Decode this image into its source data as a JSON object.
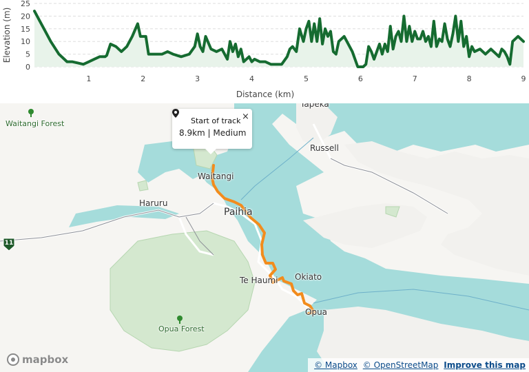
{
  "chart_data": {
    "type": "area",
    "xlabel": "Distance (km)",
    "ylabel": "Elevation (m)",
    "xlim": [
      0,
      9
    ],
    "ylim": [
      0,
      25
    ],
    "x_ticks": [
      "1",
      "2",
      "3",
      "4",
      "5",
      "6",
      "7",
      "8",
      "9"
    ],
    "y_ticks": [
      "0",
      "5",
      "10",
      "15",
      "20",
      "25"
    ],
    "grid": "horizontal dashed",
    "line_color": "#156b30",
    "fill_color": "#e8f3ea",
    "x": [
      0.0,
      0.1,
      0.2,
      0.3,
      0.45,
      0.6,
      0.7,
      0.8,
      0.9,
      1.0,
      1.1,
      1.2,
      1.3,
      1.33,
      1.4,
      1.5,
      1.6,
      1.7,
      1.8,
      1.9,
      1.95,
      2.05,
      2.1,
      2.2,
      2.35,
      2.45,
      2.55,
      2.7,
      2.85,
      2.95,
      3.0,
      3.05,
      3.1,
      3.15,
      3.25,
      3.35,
      3.45,
      3.55,
      3.6,
      3.65,
      3.7,
      3.75,
      3.8,
      3.85,
      3.95,
      4.0,
      4.05,
      4.15,
      4.25,
      4.35,
      4.45,
      4.55,
      4.65,
      4.7,
      4.75,
      4.82,
      4.88,
      4.95,
      5.0,
      5.05,
      5.1,
      5.15,
      5.2,
      5.25,
      5.3,
      5.35,
      5.4,
      5.45,
      5.5,
      5.55,
      5.6,
      5.7,
      5.75,
      5.85,
      5.95,
      6.05,
      6.1,
      6.15,
      6.2,
      6.25,
      6.3,
      6.35,
      6.4,
      6.45,
      6.5,
      6.55,
      6.6,
      6.65,
      6.7,
      6.75,
      6.8,
      6.85,
      6.9,
      6.95,
      7.0,
      7.05,
      7.1,
      7.15,
      7.2,
      7.25,
      7.3,
      7.35,
      7.4,
      7.45,
      7.5,
      7.55,
      7.6,
      7.65,
      7.7,
      7.75,
      7.8,
      7.85,
      7.9,
      7.95,
      8.0,
      8.05,
      8.1,
      8.2,
      8.3,
      8.4,
      8.5,
      8.55,
      8.6,
      8.65,
      8.7,
      8.75,
      8.8,
      8.9,
      9.0
    ],
    "y": [
      22,
      18,
      14,
      10,
      5,
      2,
      2,
      1.5,
      1,
      2,
      3,
      4,
      4,
      4.5,
      9,
      8,
      6,
      8,
      12,
      17,
      12,
      12,
      5,
      5,
      5,
      6,
      5,
      4,
      5,
      8,
      13,
      8,
      6,
      12,
      7,
      6,
      7,
      3,
      10,
      6,
      9,
      4,
      7,
      2,
      4,
      2,
      3,
      2,
      2,
      1,
      1,
      1,
      4,
      7,
      8,
      6,
      15,
      10,
      15,
      18,
      10,
      17,
      10,
      19,
      9,
      15,
      12,
      14,
      6,
      5,
      10,
      12,
      10,
      6,
      0,
      0,
      1,
      8,
      6,
      3,
      6,
      9,
      5,
      9,
      6,
      16,
      7,
      12,
      14,
      10,
      20,
      10,
      16,
      10,
      14,
      11,
      11,
      14,
      10,
      12,
      8,
      18,
      8,
      11,
      10,
      17,
      11,
      8,
      13,
      20,
      10,
      18,
      8,
      12,
      4,
      8,
      6,
      7,
      5,
      7,
      5,
      4,
      7,
      6,
      4,
      1,
      10,
      12,
      10
    ]
  },
  "map": {
    "places": [
      {
        "id": "waitangi-forest",
        "label": "Waitangi Forest"
      },
      {
        "id": "opua-forest",
        "label": "Opua Forest"
      },
      {
        "id": "tapeka",
        "label": "Tapeka"
      },
      {
        "id": "russell",
        "label": "Russell"
      },
      {
        "id": "waitangi",
        "label": "Waitangi"
      },
      {
        "id": "haruru",
        "label": "Haruru"
      },
      {
        "id": "paihia",
        "label": "Paihia"
      },
      {
        "id": "te-haumi",
        "label": "Te Haumi"
      },
      {
        "id": "okiato",
        "label": "Okiato"
      },
      {
        "id": "opua",
        "label": "Opua"
      }
    ],
    "route_shield": "11",
    "track_color": "#f28c1d",
    "water_color": "#a5dcdb",
    "park_color": "#c9e3c4"
  },
  "popup": {
    "title": "Start of track",
    "subtitle": "8.9km | Medium",
    "close": "×"
  },
  "logo": {
    "text": "mapbox"
  },
  "attribution": {
    "mapbox": "© Mapbox",
    "osm": "© OpenStreetMap",
    "improve": "Improve this map"
  }
}
